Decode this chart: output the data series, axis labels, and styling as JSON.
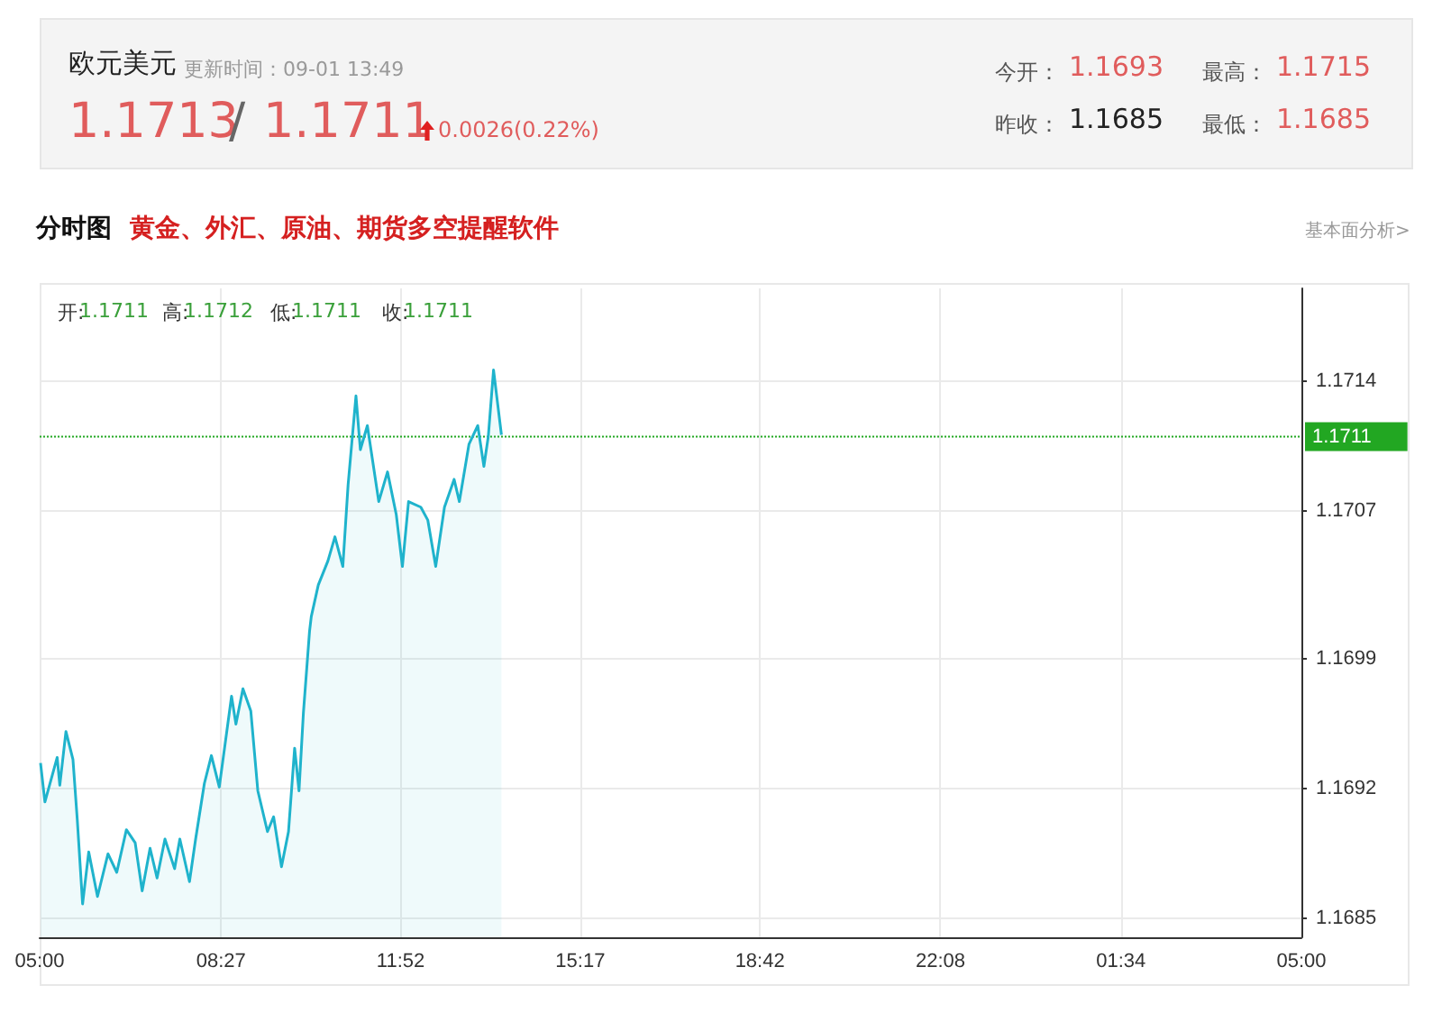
{
  "chart_data": {
    "type": "area",
    "title": "欧元美元",
    "subtitle": "分时图",
    "annotations": [
      "更新时间：09-01 13:49",
      "1.1713",
      "/",
      "1.1711",
      "0.0026(0.22%)",
      "今开：",
      "1.1693",
      "最高：",
      "1.1715",
      "昨收：",
      "1.1685",
      "最低：",
      "1.1685",
      "黄金、外汇、原油、期货多空提醒软件",
      "基本面分析>",
      "开:",
      "1.1711",
      "高:",
      "1.1712",
      "低:",
      "1.1711",
      "收:",
      "1.1711"
    ],
    "x": [
      "--09-01T05:01",
      "--09-01T05:06",
      "--09-01T05:20",
      "--09-01T05:23",
      "--09-01T05:30",
      "--09-01T05:38",
      "--09-01T05:43",
      "--09-01T05:49",
      "--09-01T05:56",
      "--09-01T06:06",
      "--09-01T06:18",
      "--09-01T06:28",
      "--09-01T06:39",
      "--09-01T06:49",
      "--09-01T06:57",
      "--09-01T07:06",
      "--09-01T07:14",
      "--09-01T07:23",
      "--09-01T07:34",
      "--09-01T07:40",
      "--09-01T07:51",
      "--09-01T07:58",
      "--09-01T08:08",
      "--09-01T08:16",
      "--09-01T08:25",
      "--09-01T08:39",
      "--09-01T08:44",
      "--09-01T08:52",
      "--09-01T09:01",
      "--09-01T09:09",
      "--09-01T09:20",
      "--09-01T09:27",
      "--09-01T09:36",
      "--09-01T09:44",
      "--09-01T09:51",
      "--09-01T09:56",
      "--09-01T10:01",
      "--09-01T10:08",
      "--09-01T10:10",
      "--09-01T10:18",
      "--09-01T10:29",
      "--09-01T10:37",
      "--09-01T10:46",
      "--09-01T10:52",
      "--09-01T11:01",
      "--09-01T11:06",
      "--09-01T11:14",
      "--09-01T11:27",
      "--09-01T11:37",
      "--09-01T11:47",
      "--09-01T11:54",
      "--09-01T12:01",
      "--09-01T12:15",
      "--09-01T12:23",
      "--09-01T12:32",
      "--09-01T12:42",
      "--09-01T12:53",
      "--09-01T12:59",
      "--09-01T13:10",
      "--09-01T13:20",
      "--09-01T13:27",
      "--09-01T13:32",
      "--09-01T13:38",
      "--09-01T13:47"
    ],
    "series": [
      {
        "color": "#1fb3cc",
        "values": [
          1.16934,
          1.16913,
          1.16937,
          1.16922,
          1.16951,
          1.16936,
          1.16903,
          1.16858,
          1.16886,
          1.16862,
          1.16885,
          1.16875,
          1.16898,
          1.16891,
          1.16865,
          1.16888,
          1.16872,
          1.16893,
          1.16877,
          1.16893,
          1.1687,
          1.16893,
          1.16923,
          1.16938,
          1.16921,
          1.1697,
          1.16955,
          1.16974,
          1.16962,
          1.16919,
          1.16897,
          1.16905,
          1.16878,
          1.16897,
          1.16942,
          1.16919,
          1.16961,
          1.17005,
          1.17013,
          1.1703,
          1.17043,
          1.17056,
          1.1704,
          1.17084,
          1.17132,
          1.17103,
          1.17116,
          1.17075,
          1.17091,
          1.17068,
          1.1704,
          1.17075,
          1.17072,
          1.17065,
          1.1704,
          1.17072,
          1.17087,
          1.17075,
          1.17106,
          1.17116,
          1.17094,
          1.1711,
          1.17146,
          1.17111
        ]
      }
    ],
    "xlim": [
      "--09-01T05:00",
      "--09-02T05:00"
    ],
    "xticks": [
      {
        "value": "--09-01T05:00",
        "label": "05:00"
      },
      {
        "value": "--09-01T08:27",
        "label": "08:27"
      },
      {
        "value": "--09-01T11:52",
        "label": "11:52"
      },
      {
        "value": "--09-01T15:17",
        "label": "15:17"
      },
      {
        "value": "--09-01T18:42",
        "label": "18:42"
      },
      {
        "value": "--09-01T22:08",
        "label": "22:08"
      },
      {
        "value": "--09-02T01:34",
        "label": "01:34"
      },
      {
        "value": "--09-02T05:00",
        "label": "05:00"
      }
    ],
    "ylim": [
      1.1684,
      1.1719
    ],
    "yticks": [
      1.1685,
      1.1692,
      1.1699,
      1.1707,
      1.1714
    ],
    "ref_lines": [
      {
        "axis": "y",
        "value": 1.1711,
        "label": "1.1711",
        "color": "#22a722",
        "line_style": "dotted"
      }
    ],
    "grid": true,
    "marker": "none",
    "line_style": "solid"
  }
}
